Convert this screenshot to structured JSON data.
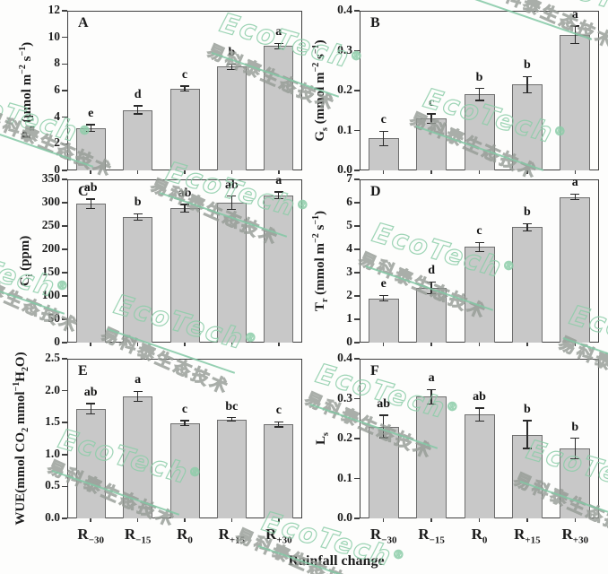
{
  "figure": {
    "xlabel": "Rainfall change",
    "categories": [
      {
        "base": "R",
        "sub": "−30"
      },
      {
        "base": "R",
        "sub": "−15"
      },
      {
        "base": "R",
        "sub": "0"
      },
      {
        "base": "R",
        "sub": "+15"
      },
      {
        "base": "R",
        "sub": "+30"
      }
    ]
  },
  "chart_data": [
    {
      "panel": "A",
      "type": "bar",
      "ylabel_parts": [
        [
          "t",
          "P"
        ],
        [
          "sub",
          "n"
        ],
        [
          "t",
          " (μmol m"
        ],
        [
          "sup",
          "−2"
        ],
        [
          "t",
          " s"
        ],
        [
          "sup",
          "−1"
        ],
        [
          "t",
          ")"
        ]
      ],
      "ylim": [
        0,
        12
      ],
      "yticks": [
        {
          "v": 0,
          "label": "0"
        },
        {
          "v": 2,
          "label": "2"
        },
        {
          "v": 4,
          "label": "4"
        },
        {
          "v": 6,
          "label": "6"
        },
        {
          "v": 8,
          "label": "8"
        },
        {
          "v": 10,
          "label": "10"
        },
        {
          "v": 12,
          "label": "12"
        }
      ],
      "categories": [
        "R-30",
        "R-15",
        "R0",
        "R+15",
        "R+30"
      ],
      "values": [
        3.2,
        4.55,
        6.15,
        7.8,
        9.35
      ],
      "errors": [
        0.25,
        0.3,
        0.18,
        0.2,
        0.2
      ],
      "letters": [
        "e",
        "d",
        "c",
        "b",
        "a"
      ]
    },
    {
      "panel": "B",
      "type": "bar",
      "ylabel_parts": [
        [
          "t",
          "G"
        ],
        [
          "sub",
          "s"
        ],
        [
          "t",
          " (mmol m"
        ],
        [
          "sup",
          "−2"
        ],
        [
          "t",
          " s"
        ],
        [
          "sup",
          "−1"
        ],
        [
          "t",
          ")"
        ]
      ],
      "ylim": [
        0,
        0.4
      ],
      "yticks": [
        {
          "v": 0,
          "label": "0.0"
        },
        {
          "v": 0.1,
          "label": "0.1"
        },
        {
          "v": 0.2,
          "label": "0.2"
        },
        {
          "v": 0.3,
          "label": "0.3"
        },
        {
          "v": 0.4,
          "label": "0.4"
        }
      ],
      "categories": [
        "R-30",
        "R-15",
        "R0",
        "R+15",
        "R+30"
      ],
      "values": [
        0.08,
        0.13,
        0.19,
        0.215,
        0.34
      ],
      "errors": [
        0.018,
        0.012,
        0.015,
        0.02,
        0.022
      ],
      "letters": [
        "c",
        "c",
        "b",
        "b",
        "a"
      ]
    },
    {
      "panel": "C",
      "type": "bar",
      "ylabel_parts": [
        [
          "t",
          "C"
        ],
        [
          "sub",
          "i"
        ],
        [
          "t",
          " (ppm)"
        ]
      ],
      "ylim": [
        0,
        350
      ],
      "yticks": [
        {
          "v": 0,
          "label": "0"
        },
        {
          "v": 50,
          "label": "50"
        },
        {
          "v": 100,
          "label": "100"
        },
        {
          "v": 150,
          "label": "150"
        },
        {
          "v": 200,
          "label": "200"
        },
        {
          "v": 250,
          "label": "250"
        },
        {
          "v": 300,
          "label": "300"
        },
        {
          "v": 350,
          "label": "350"
        }
      ],
      "categories": [
        "R-30",
        "R-15",
        "R0",
        "R+15",
        "R+30"
      ],
      "values": [
        298,
        269,
        288,
        300,
        316
      ],
      "errors": [
        10,
        7,
        8,
        14,
        7
      ],
      "letters": [
        "ab",
        "b",
        "ab",
        "ab",
        "a"
      ]
    },
    {
      "panel": "D",
      "type": "bar",
      "ylabel_parts": [
        [
          "t",
          "T"
        ],
        [
          "sub",
          "r"
        ],
        [
          "t",
          " (mmol m"
        ],
        [
          "sup",
          "−2"
        ],
        [
          "t",
          " s"
        ],
        [
          "sup",
          "−1"
        ],
        [
          "t",
          ")"
        ]
      ],
      "ylim": [
        0,
        7
      ],
      "yticks": [
        {
          "v": 0,
          "label": "0"
        },
        {
          "v": 1,
          "label": "1"
        },
        {
          "v": 2,
          "label": "2"
        },
        {
          "v": 3,
          "label": "3"
        },
        {
          "v": 4,
          "label": "4"
        },
        {
          "v": 5,
          "label": "5"
        },
        {
          "v": 6,
          "label": "6"
        },
        {
          "v": 7,
          "label": "7"
        }
      ],
      "categories": [
        "R-30",
        "R-15",
        "R0",
        "R+15",
        "R+30"
      ],
      "values": [
        1.9,
        2.35,
        4.1,
        4.95,
        6.25
      ],
      "errors": [
        0.12,
        0.25,
        0.2,
        0.15,
        0.12
      ],
      "letters": [
        "e",
        "d",
        "c",
        "b",
        "a"
      ]
    },
    {
      "panel": "E",
      "type": "bar",
      "ylabel_parts": [
        [
          "t",
          "WUE(mmol CO"
        ],
        [
          "sub",
          "2"
        ],
        [
          "t",
          " mmol"
        ],
        [
          "sup",
          "−1"
        ],
        [
          "t",
          "H"
        ],
        [
          "sub",
          "2"
        ],
        [
          "t",
          "O)"
        ]
      ],
      "ylim": [
        0,
        2.5
      ],
      "yticks": [
        {
          "v": 0,
          "label": "0.0"
        },
        {
          "v": 0.5,
          "label": "0.5"
        },
        {
          "v": 1,
          "label": "1.0"
        },
        {
          "v": 1.5,
          "label": "1.5"
        },
        {
          "v": 2,
          "label": "2.0"
        },
        {
          "v": 2.5,
          "label": "2.5"
        }
      ],
      "categories": [
        "R-30",
        "R-15",
        "R0",
        "R+15",
        "R+30"
      ],
      "values": [
        1.72,
        1.91,
        1.49,
        1.55,
        1.47
      ],
      "errors": [
        0.08,
        0.08,
        0.04,
        0.03,
        0.04
      ],
      "letters": [
        "ab",
        "a",
        "c",
        "bc",
        "c"
      ]
    },
    {
      "panel": "F",
      "type": "bar",
      "ylabel_parts": [
        [
          "t",
          "L"
        ],
        [
          "sub",
          "s"
        ]
      ],
      "ylim": [
        0,
        0.4
      ],
      "yticks": [
        {
          "v": 0,
          "label": "0.0"
        },
        {
          "v": 0.1,
          "label": "0.1"
        },
        {
          "v": 0.2,
          "label": "0.2"
        },
        {
          "v": 0.3,
          "label": "0.3"
        },
        {
          "v": 0.4,
          "label": "0.4"
        }
      ],
      "categories": [
        "R-30",
        "R-15",
        "R0",
        "R+15",
        "R+30"
      ],
      "values": [
        0.23,
        0.305,
        0.26,
        0.21,
        0.175
      ],
      "errors": [
        0.028,
        0.018,
        0.016,
        0.035,
        0.026
      ],
      "letters": [
        "ab",
        "a",
        "ab",
        "b",
        "b"
      ]
    }
  ],
  "watermark": {
    "brand": "EcoTech",
    "reg": "®",
    "cjk": "易科泰生态技术",
    "brand_color": "#8ccda8",
    "cjk_color": "#949a94",
    "line_color": "#82c8a5"
  }
}
